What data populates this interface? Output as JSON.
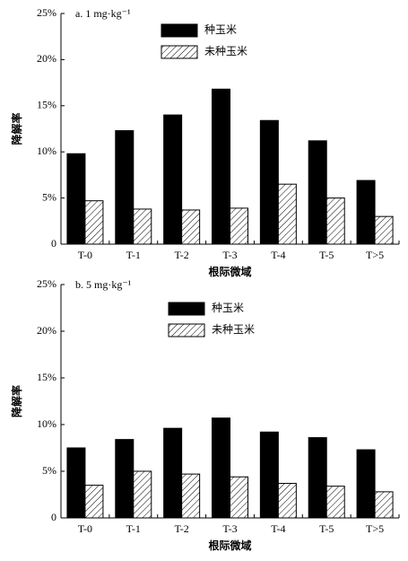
{
  "chart_data": [
    {
      "type": "bar",
      "title": "a. 1 mg·kg⁻¹",
      "x_label": "根际微域",
      "y_label": "降解率",
      "categories": [
        "T-0",
        "T-1",
        "T-2",
        "T-3",
        "T-4",
        "T-5",
        "T>5"
      ],
      "series": [
        {
          "name": "种玉米",
          "color": "#000000",
          "values": [
            9.8,
            12.3,
            14.0,
            16.8,
            13.4,
            11.2,
            6.9
          ]
        },
        {
          "name": "未种玉米",
          "color": "hatch",
          "values": [
            4.7,
            3.8,
            3.7,
            3.9,
            6.5,
            5.0,
            3.0
          ]
        }
      ],
      "ylim": [
        0,
        25
      ],
      "yticks": [
        0,
        {
          "value": 5,
          "label": "5%"
        },
        {
          "value": 10,
          "label": "10%"
        },
        {
          "value": 15,
          "label": "15%"
        },
        {
          "value": 20,
          "label": "20%"
        },
        {
          "value": 25,
          "label": "25%"
        }
      ]
    },
    {
      "type": "bar",
      "title": "b. 5 mg·kg⁻¹",
      "x_label": "根际微域",
      "y_label": "降解率",
      "categories": [
        "T-0",
        "T-1",
        "T-2",
        "T-3",
        "T-4",
        "T-5",
        "T>5"
      ],
      "series": [
        {
          "name": "种玉米",
          "color": "#000000",
          "values": [
            7.5,
            8.4,
            9.6,
            10.7,
            9.2,
            8.6,
            7.3
          ]
        },
        {
          "name": "未种玉米",
          "color": "hatch",
          "values": [
            3.5,
            5.0,
            4.7,
            4.4,
            3.7,
            3.4,
            2.8
          ]
        }
      ],
      "ylim": [
        0,
        25
      ],
      "yticks": [
        0,
        {
          "value": 5,
          "label": "5%"
        },
        {
          "value": 10,
          "label": "10%"
        },
        {
          "value": 15,
          "label": "15%"
        },
        {
          "value": 20,
          "label": "20%"
        },
        {
          "value": 25,
          "label": "25%"
        }
      ]
    }
  ]
}
